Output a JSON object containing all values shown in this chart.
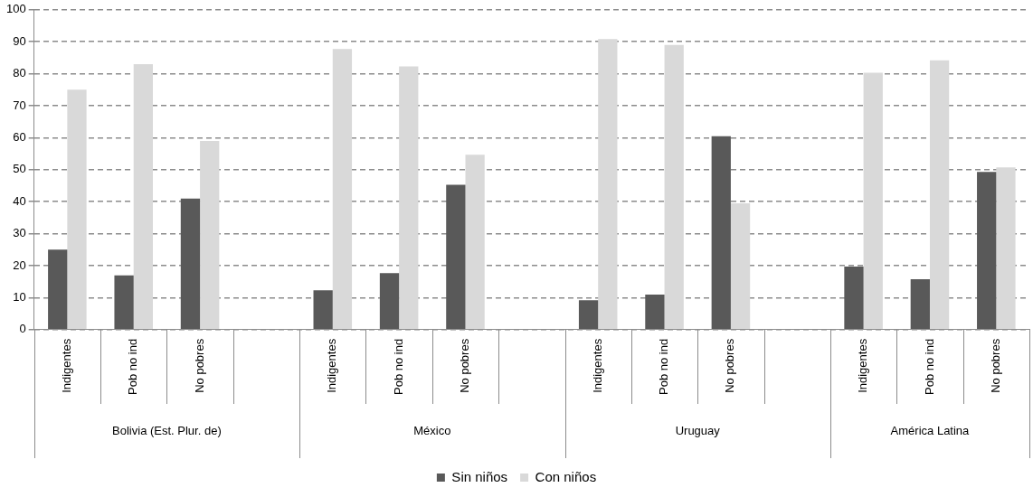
{
  "chart_data": {
    "type": "bar",
    "categories": [
      "Indigentes",
      "Pob no ind",
      "No pobres",
      null,
      "Indigentes",
      "Pob no ind",
      "No pobres",
      null,
      "Indigentes",
      "Pob no ind",
      "No pobres",
      null,
      "Indigentes",
      "Pob no ind",
      "No pobres"
    ],
    "series": [
      {
        "name": "Sin niños",
        "color": "#595959",
        "values": [
          25,
          17,
          41,
          null,
          12.3,
          17.7,
          45.3,
          null,
          9.2,
          11,
          60.5,
          null,
          19.7,
          15.8,
          49.3
        ]
      },
      {
        "name": "Con niños",
        "color": "#d9d9d9",
        "values": [
          75,
          83,
          59,
          null,
          87.7,
          82.3,
          54.7,
          null,
          90.8,
          89,
          39.5,
          null,
          80.3,
          84.2,
          50.7
        ]
      }
    ],
    "annotations": [
      "Bolivia (Est. Plur. de)",
      "México",
      "Uruguay",
      "América Latina"
    ],
    "ylim": [
      0,
      100
    ],
    "yticks": [
      0,
      10,
      20,
      30,
      40,
      50,
      60,
      70,
      80,
      90,
      100
    ],
    "grid": "y",
    "legend": "bottom"
  }
}
